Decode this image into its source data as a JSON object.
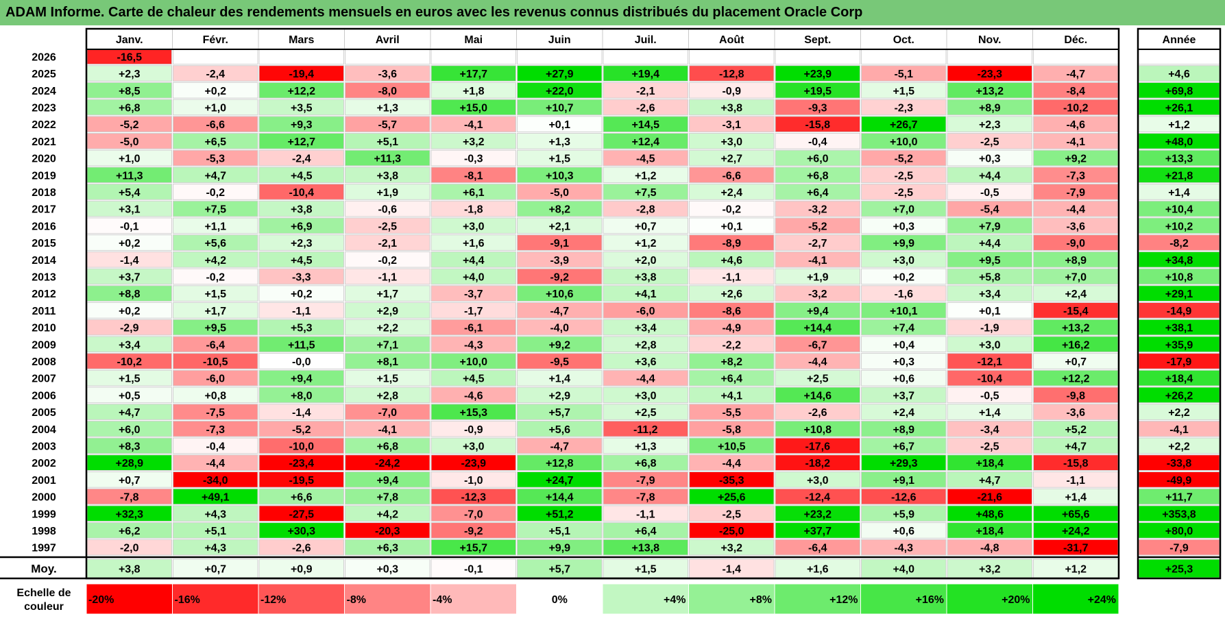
{
  "title": "ADAM Informe. Carte de chaleur des rendements mensuels en euros avec les revenus connus distribués du placement Oracle Corp",
  "chart_data": {
    "type": "heatmap",
    "title": "ADAM Informe. Carte de chaleur des rendements mensuels en euros avec les revenus connus distribués du placement Oracle Corp",
    "months": [
      "Janv.",
      "Févr.",
      "Mars",
      "Avril",
      "Mai",
      "Juin",
      "Juil.",
      "Août",
      "Sept.",
      "Oct.",
      "Nov.",
      "Déc."
    ],
    "annual_header": "Année",
    "rows": [
      {
        "year": "2026",
        "values": [
          "-16,5",
          null,
          null,
          null,
          null,
          null,
          null,
          null,
          null,
          null,
          null,
          null
        ],
        "annual": null
      },
      {
        "year": "2025",
        "values": [
          "+2,3",
          "-2,4",
          "-19,4",
          "-3,6",
          "+17,7",
          "+27,9",
          "+19,4",
          "-12,8",
          "+23,9",
          "-5,1",
          "-23,3",
          "-4,7"
        ],
        "annual": "+4,6"
      },
      {
        "year": "2024",
        "values": [
          "+8,5",
          "+0,2",
          "+12,2",
          "-8,0",
          "+1,8",
          "+22,0",
          "-2,1",
          "-0,9",
          "+19,5",
          "+1,5",
          "+13,2",
          "-8,4"
        ],
        "annual": "+69,8"
      },
      {
        "year": "2023",
        "values": [
          "+6,8",
          "+1,0",
          "+3,5",
          "+1,3",
          "+15,0",
          "+10,7",
          "-2,6",
          "+3,8",
          "-9,3",
          "-2,3",
          "+8,9",
          "-10,2"
        ],
        "annual": "+26,1"
      },
      {
        "year": "2022",
        "values": [
          "-5,2",
          "-6,6",
          "+9,3",
          "-5,7",
          "-4,1",
          "+0,1",
          "+14,5",
          "-3,1",
          "-15,8",
          "+26,7",
          "+2,3",
          "-4,6"
        ],
        "annual": "+1,2"
      },
      {
        "year": "2021",
        "values": [
          "-5,0",
          "+6,5",
          "+12,7",
          "+5,1",
          "+3,2",
          "+1,3",
          "+12,4",
          "+3,0",
          "-0,4",
          "+10,0",
          "-2,5",
          "-4,1"
        ],
        "annual": "+48,0"
      },
      {
        "year": "2020",
        "values": [
          "+1,0",
          "-5,3",
          "-2,4",
          "+11,3",
          "-0,3",
          "+1,5",
          "-4,5",
          "+2,7",
          "+6,0",
          "-5,2",
          "+0,3",
          "+9,2"
        ],
        "annual": "+13,3"
      },
      {
        "year": "2019",
        "values": [
          "+11,3",
          "+4,7",
          "+4,5",
          "+3,8",
          "-8,1",
          "+10,3",
          "+1,2",
          "-6,6",
          "+6,8",
          "-2,5",
          "+4,4",
          "-7,3"
        ],
        "annual": "+21,8"
      },
      {
        "year": "2018",
        "values": [
          "+5,4",
          "-0,2",
          "-10,4",
          "+1,9",
          "+6,1",
          "-5,0",
          "+7,5",
          "+2,4",
          "+6,4",
          "-2,5",
          "-0,5",
          "-7,9"
        ],
        "annual": "+1,4"
      },
      {
        "year": "2017",
        "values": [
          "+3,1",
          "+7,5",
          "+3,8",
          "-0,6",
          "-1,8",
          "+8,2",
          "-2,8",
          "-0,2",
          "-3,2",
          "+7,0",
          "-5,4",
          "-4,4"
        ],
        "annual": "+10,4"
      },
      {
        "year": "2016",
        "values": [
          "-0,1",
          "+1,1",
          "+6,9",
          "-2,5",
          "+3,0",
          "+2,1",
          "+0,7",
          "+0,1",
          "-5,2",
          "+0,3",
          "+7,9",
          "-3,6"
        ],
        "annual": "+10,2"
      },
      {
        "year": "2015",
        "values": [
          "+0,2",
          "+5,6",
          "+2,3",
          "-2,1",
          "+1,6",
          "-9,1",
          "+1,2",
          "-8,9",
          "-2,7",
          "+9,9",
          "+4,4",
          "-9,0"
        ],
        "annual": "-8,2"
      },
      {
        "year": "2014",
        "values": [
          "-1,4",
          "+4,2",
          "+4,5",
          "-0,2",
          "+4,4",
          "-3,9",
          "+2,0",
          "+4,6",
          "-4,1",
          "+3,0",
          "+9,5",
          "+8,9"
        ],
        "annual": "+34,8"
      },
      {
        "year": "2013",
        "values": [
          "+3,7",
          "-0,2",
          "-3,3",
          "-1,1",
          "+4,0",
          "-9,2",
          "+3,8",
          "-1,1",
          "+1,9",
          "+0,2",
          "+5,8",
          "+7,0"
        ],
        "annual": "+10,8"
      },
      {
        "year": "2012",
        "values": [
          "+8,8",
          "+1,5",
          "+0,2",
          "+1,7",
          "-3,7",
          "+10,6",
          "+4,1",
          "+2,6",
          "-3,2",
          "-1,6",
          "+3,4",
          "+2,4"
        ],
        "annual": "+29,1"
      },
      {
        "year": "2011",
        "values": [
          "+0,2",
          "+1,7",
          "-1,1",
          "+2,9",
          "-1,7",
          "-4,7",
          "-6,0",
          "-8,6",
          "+9,4",
          "+10,1",
          "+0,1",
          "-15,4"
        ],
        "annual": "-14,9"
      },
      {
        "year": "2010",
        "values": [
          "-2,9",
          "+9,5",
          "+5,3",
          "+2,2",
          "-6,1",
          "-4,0",
          "+3,4",
          "-4,9",
          "+14,4",
          "+7,4",
          "-1,9",
          "+13,2"
        ],
        "annual": "+38,1"
      },
      {
        "year": "2009",
        "values": [
          "+3,4",
          "-6,4",
          "+11,5",
          "+7,1",
          "-4,3",
          "+9,2",
          "+2,8",
          "-2,2",
          "-6,7",
          "+0,4",
          "+3,0",
          "+16,2"
        ],
        "annual": "+35,9"
      },
      {
        "year": "2008",
        "values": [
          "-10,2",
          "-10,5",
          "-0,0",
          "+8,1",
          "+10,0",
          "-9,5",
          "+3,6",
          "+8,2",
          "-4,4",
          "+0,3",
          "-12,1",
          "+0,7"
        ],
        "annual": "-17,9"
      },
      {
        "year": "2007",
        "values": [
          "+1,5",
          "-6,0",
          "+9,4",
          "+1,5",
          "+4,5",
          "+1,4",
          "-4,4",
          "+6,4",
          "+2,5",
          "+0,6",
          "-10,4",
          "+12,2"
        ],
        "annual": "+18,4"
      },
      {
        "year": "2006",
        "values": [
          "+0,5",
          "+0,8",
          "+8,0",
          "+2,8",
          "-4,6",
          "+2,9",
          "+3,0",
          "+4,1",
          "+14,6",
          "+3,7",
          "-0,5",
          "-9,8"
        ],
        "annual": "+26,2"
      },
      {
        "year": "2005",
        "values": [
          "+4,7",
          "-7,5",
          "-1,4",
          "-7,0",
          "+15,3",
          "+5,7",
          "+2,5",
          "-5,5",
          "-2,6",
          "+2,4",
          "+1,4",
          "-3,6"
        ],
        "annual": "+2,2"
      },
      {
        "year": "2004",
        "values": [
          "+6,0",
          "-7,3",
          "-5,2",
          "-4,1",
          "-0,9",
          "+5,6",
          "-11,2",
          "-5,8",
          "+10,8",
          "+8,9",
          "-3,4",
          "+5,2"
        ],
        "annual": "-4,1"
      },
      {
        "year": "2003",
        "values": [
          "+8,3",
          "-0,4",
          "-10,0",
          "+6,8",
          "+3,0",
          "-4,7",
          "+1,3",
          "+10,5",
          "-17,6",
          "+6,7",
          "-2,5",
          "+4,7"
        ],
        "annual": "+2,2"
      },
      {
        "year": "2002",
        "values": [
          "+28,9",
          "-4,4",
          "-23,4",
          "-24,2",
          "-23,9",
          "+12,8",
          "+6,8",
          "-4,4",
          "-18,2",
          "+29,3",
          "+18,4",
          "-15,8"
        ],
        "annual": "-33,8"
      },
      {
        "year": "2001",
        "values": [
          "+0,7",
          "-34,0",
          "-19,5",
          "+9,4",
          "-1,0",
          "+24,7",
          "-7,9",
          "-35,3",
          "+3,0",
          "+9,1",
          "+4,7",
          "-1,1"
        ],
        "annual": "-49,9"
      },
      {
        "year": "2000",
        "values": [
          "-7,8",
          "+49,1",
          "+6,6",
          "+7,8",
          "-12,3",
          "+14,4",
          "-7,8",
          "+25,6",
          "-12,4",
          "-12,6",
          "-21,6",
          "+1,4"
        ],
        "annual": "+11,7"
      },
      {
        "year": "1999",
        "values": [
          "+32,3",
          "+4,3",
          "-27,5",
          "+4,2",
          "-7,0",
          "+51,2",
          "-1,1",
          "-2,5",
          "+23,2",
          "+5,9",
          "+48,6",
          "+65,6"
        ],
        "annual": "+353,8"
      },
      {
        "year": "1998",
        "values": [
          "+6,2",
          "+5,1",
          "+30,3",
          "-20,3",
          "-9,2",
          "+5,1",
          "+6,4",
          "-25,0",
          "+37,7",
          "+0,6",
          "+18,4",
          "+24,2"
        ],
        "annual": "+80,0"
      },
      {
        "year": "1997",
        "values": [
          "-2,0",
          "+4,3",
          "-2,6",
          "+6,3",
          "+15,7",
          "+9,9",
          "+13,8",
          "+3,2",
          "-6,4",
          "-4,3",
          "-4,8",
          "-31,7"
        ],
        "annual": "-7,9"
      }
    ],
    "average": {
      "label": "Moy.",
      "values": [
        "+3,8",
        "+0,7",
        "+0,9",
        "+0,3",
        "-0,1",
        "+5,7",
        "+1,5",
        "-1,4",
        "+1,6",
        "+4,0",
        "+3,2",
        "+1,2"
      ],
      "annual": "+25,3"
    },
    "legend": {
      "label_line1": "Echelle de",
      "label_line2": "couleur",
      "items": [
        {
          "label": "-20%",
          "value": -20
        },
        {
          "label": "-16%",
          "value": -16
        },
        {
          "label": "-12%",
          "value": -12
        },
        {
          "label": "-8%",
          "value": -8
        },
        {
          "label": "-4%",
          "value": -4
        },
        {
          "label": "0%",
          "value": 0
        },
        {
          "label": "+4%",
          "value": 4
        },
        {
          "label": "+8%",
          "value": 8
        },
        {
          "label": "+12%",
          "value": 12
        },
        {
          "label": "+16%",
          "value": 16
        },
        {
          "label": "+20%",
          "value": 20
        },
        {
          "label": "+24%",
          "value": 24
        }
      ]
    },
    "colors": {
      "negative": "#ff0000",
      "positive": "#00dd00",
      "neutral": "#ffffff",
      "title_bg": "#78c878",
      "border": "#000000"
    }
  }
}
